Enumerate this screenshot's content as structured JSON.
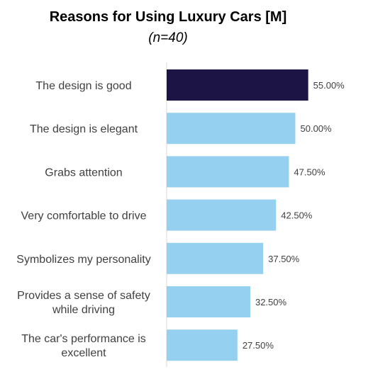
{
  "chart_data": {
    "type": "bar",
    "orientation": "horizontal",
    "title": "Reasons for Using Luxury Cars [M]",
    "subtitle": "(n=40)",
    "categories": [
      "The design is good",
      "The design is elegant",
      "Grabs attention",
      "Very comfortable to drive",
      "Symbolizes my personality",
      "Provides a sense of safety while driving",
      "The car's performance is excellent"
    ],
    "category_lines": [
      [
        "The design is good"
      ],
      [
        "The design is elegant"
      ],
      [
        "Grabs attention"
      ],
      [
        "Very comfortable to drive"
      ],
      [
        "Symbolizes my personality"
      ],
      [
        "Provides a sense of safety",
        "while driving"
      ],
      [
        "The car's performance is",
        "excellent"
      ]
    ],
    "values": [
      55.0,
      50.0,
      47.5,
      42.5,
      37.5,
      32.5,
      27.5
    ],
    "value_labels": [
      "55.00%",
      "50.00%",
      "47.50%",
      "42.50%",
      "37.50%",
      "32.50%",
      "27.50%"
    ],
    "xlim": [
      0,
      100
    ],
    "grid": false,
    "legend": "none",
    "colors": {
      "highlight": "#1c1444",
      "default": "#95d0f0",
      "axis": "#d9d9d9"
    }
  }
}
